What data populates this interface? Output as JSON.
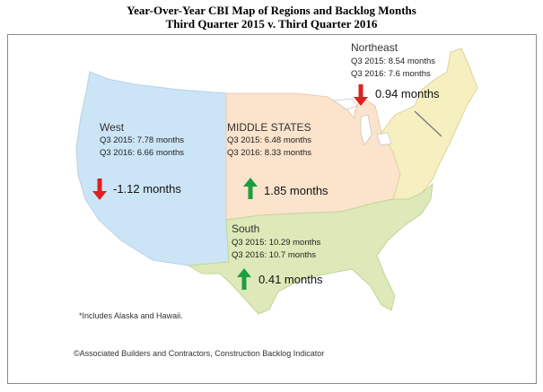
{
  "title": {
    "line1": "Year-Over-Year CBI Map of Regions and Backlog Months",
    "line2": "Third Quarter 2015 v. Third Quarter 2016"
  },
  "regions": {
    "west": {
      "name": "West",
      "q2015": "Q3 2015:  7.78 months",
      "q2016": "Q3 2016:  6.66 months",
      "change": "-1.12 months",
      "direction": "down",
      "color": "#cce5f6"
    },
    "middle": {
      "name": "MIDDLE STATES",
      "q2015": "Q3 2015:  6.48 months",
      "q2016": "Q3 2016:  8.33 months",
      "change": "1.85 months",
      "direction": "up",
      "color": "#fbe3cc"
    },
    "northeast": {
      "name": "Northeast",
      "q2015": "Q3 2015:  8.54 months",
      "q2016": "Q3 2016:  7.6 months",
      "change": "0.94 months",
      "direction": "down",
      "color": "#f6f0c0"
    },
    "south": {
      "name": "South",
      "q2015": "Q3 2015:  10.29 months",
      "q2016": "Q3 2016:  10.7 months",
      "change": "0.41 months",
      "direction": "up",
      "color": "#dde9b8"
    }
  },
  "footnote": "*Includes Alaska and Hawaii.",
  "source": "©Associated Builders and Contractors, Construction Backlog Indicator",
  "colors": {
    "up_arrow": "#1f9e3f",
    "down_arrow": "#e02020",
    "border": "#8a8a8a"
  }
}
